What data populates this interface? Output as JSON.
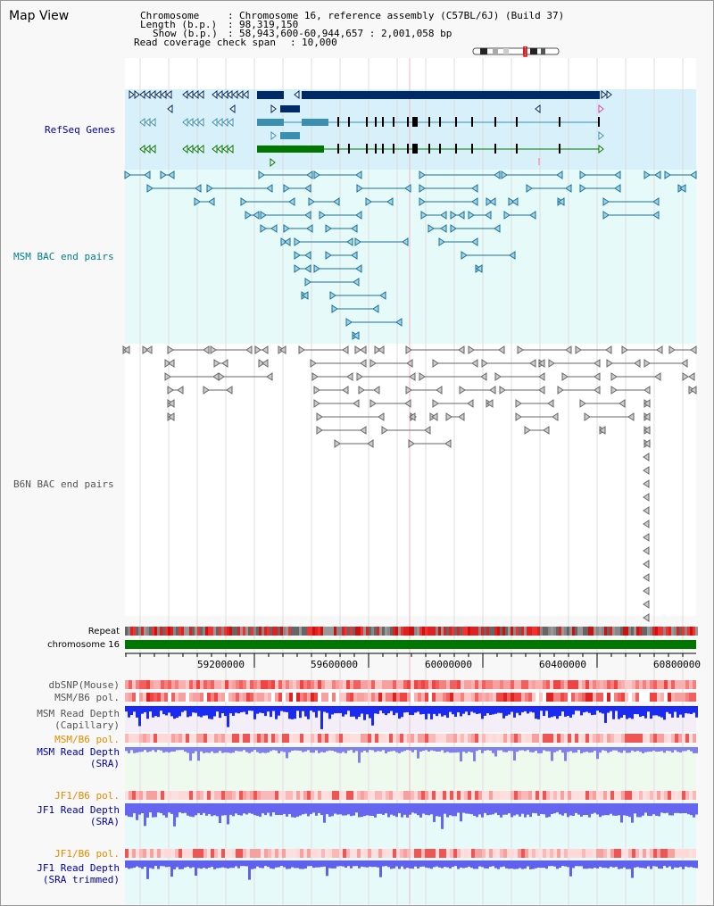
{
  "title": "Map View",
  "header": {
    "chromosome_key": "Chromosome",
    "chromosome_val": "Chromosome 16, reference assembly (C57BL/6J) (Build 37)",
    "length_key": "Length (b.p.)",
    "length_val": "98,319,150",
    "show_key": "Show (b.p.)",
    "show_val": "58,943,600-60,944,657 : 2,001,058 bp",
    "span_key": "Read coverage check span",
    "span_val": "10,000"
  },
  "tracks": {
    "refseq": "RefSeq Genes",
    "msm_bac": "MSM BAC end pairs",
    "b6n_bac": "B6N BAC end pairs",
    "repeat": "Repeat",
    "chromosome": "chromosome 16",
    "dbsnp": "dbSNP(Mouse)",
    "msm_b6_pol": "MSM/B6 pol.",
    "msm_depth_cap_1": "MSM Read Depth",
    "msm_depth_cap_2": "(Capillary)",
    "msm_b6_pol2": "MSM/B6 pol.",
    "msm_depth_sra_1": "MSM Read Depth",
    "msm_depth_sra_2": "(SRA)",
    "jf1_b6_pol": "JF1/B6 pol.",
    "jf1_depth_sra_1": "JF1 Read Depth",
    "jf1_depth_sra_2": "(SRA)",
    "jf1_b6_pol2": "JF1/B6 pol.",
    "jf1_depth_trim_1": "JF1 Read Depth",
    "jf1_depth_trim_2": "(SRA trimmed)"
  },
  "axis_ticks": [
    "59200000",
    "59600000",
    "60000000",
    "60400000",
    "60800000"
  ],
  "colors": {
    "refseq_bg": "#d8f0fa",
    "msm_bg": "#e6fafa",
    "gene_dark": "#002a66",
    "gene_mid": "#3a8fb0",
    "gene_green": "#007700",
    "msm_line": "#1e6f95",
    "b6n_line": "#555555",
    "chrom_green": "#007700",
    "label_blue": "#0000aa",
    "label_teal": "#007f8f",
    "label_orange": "#e68a00"
  }
}
